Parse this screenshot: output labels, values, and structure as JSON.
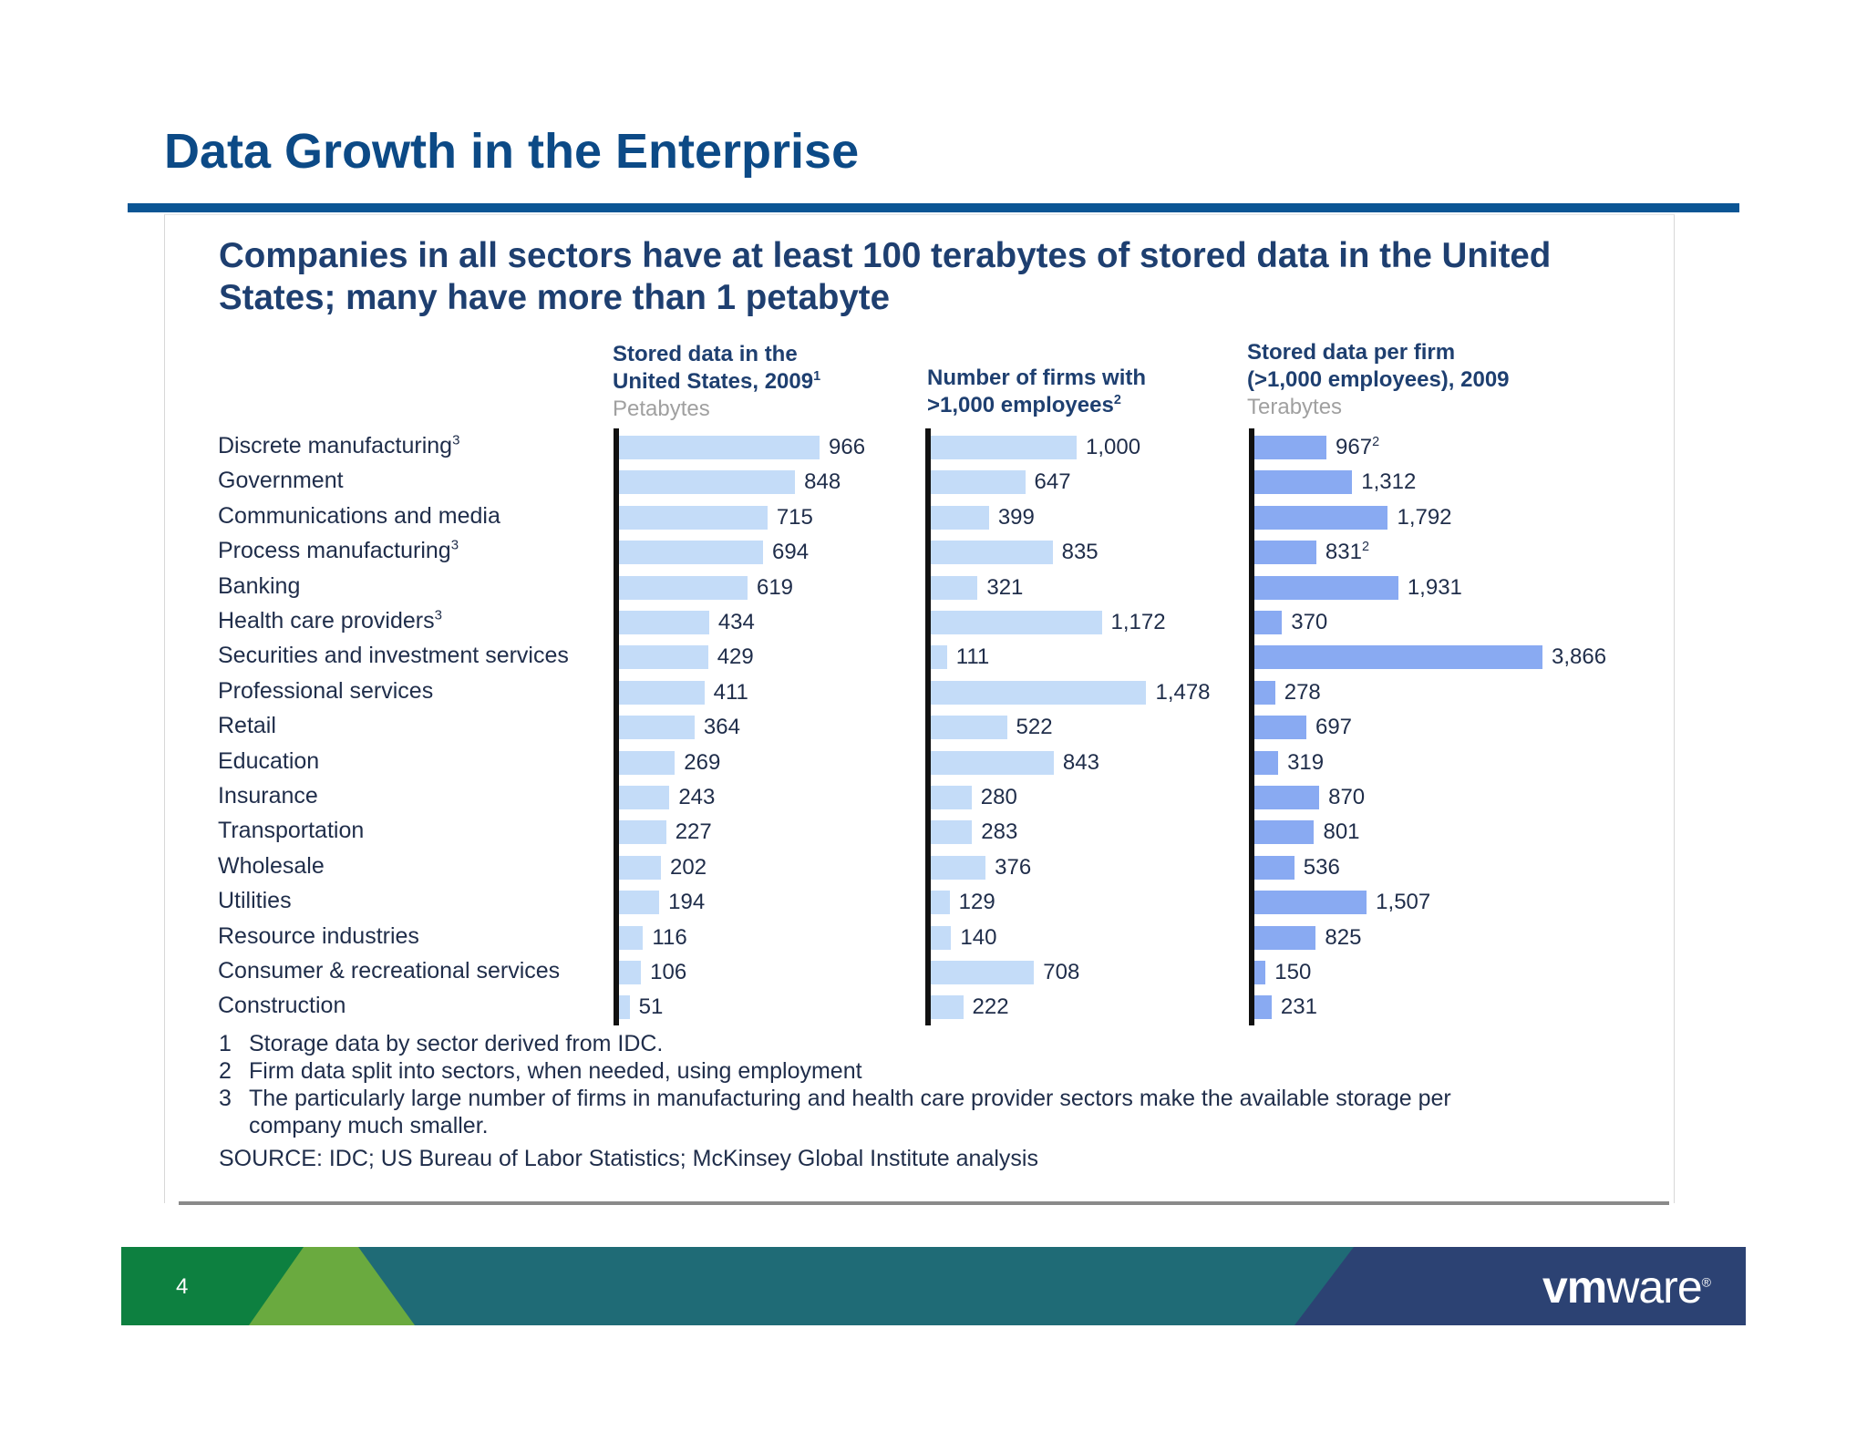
{
  "slide": {
    "title": "Data Growth in the Enterprise",
    "page_number": "4",
    "logo_text_bold": "vm",
    "logo_text_regular": "ware",
    "logo_registered": "®"
  },
  "panel": {
    "headline": "Companies in all sectors have at least 100 terabytes of stored data in the United States; many have more than 1 petabyte"
  },
  "columns": [
    {
      "line1": "Stored data in the",
      "line2": "United States, 2009",
      "sup": "1",
      "line3": "",
      "unit": "Petabytes"
    },
    {
      "line1": "",
      "line2": "Number of firms with",
      "sup": "",
      "line3": ">1,000 employees",
      "sup3": "2",
      "unit": ""
    },
    {
      "line1": "Stored data per firm",
      "line2": "(>1,000 employees), 2009",
      "sup": "",
      "line3": "",
      "unit": "Terabytes"
    }
  ],
  "footnotes": [
    {
      "num": "1",
      "text": "Storage data by sector derived from IDC."
    },
    {
      "num": "2",
      "text": "Firm data split into sectors, when needed, using employment"
    },
    {
      "num": "3",
      "text": "The particularly large number of firms in manufacturing and health care provider sectors make the available storage per"
    }
  ],
  "footnote_3_continued": "company much smaller.",
  "source": "SOURCE: IDC; US Bureau of Labor Statistics; McKinsey Global Institute analysis",
  "colors": {
    "title_blue": "#0c4a86",
    "bar_light": "#c4dcf8",
    "bar_medium": "#89aaf2",
    "footer_green": "#0d8040",
    "footer_light_green": "#6aaa3f",
    "footer_teal": "#1f6b76",
    "footer_navy": "#2c4273"
  },
  "chart_data": {
    "type": "bar",
    "orientation": "horizontal",
    "categories": [
      {
        "label": "Discrete manufacturing",
        "sup": "3"
      },
      {
        "label": "Government",
        "sup": ""
      },
      {
        "label": "Communications and media",
        "sup": ""
      },
      {
        "label": "Process manufacturing",
        "sup": "3"
      },
      {
        "label": "Banking",
        "sup": ""
      },
      {
        "label": "Health care providers",
        "sup": "3"
      },
      {
        "label": "Securities and investment services",
        "sup": ""
      },
      {
        "label": "Professional services",
        "sup": ""
      },
      {
        "label": "Retail",
        "sup": ""
      },
      {
        "label": "Education",
        "sup": ""
      },
      {
        "label": "Insurance",
        "sup": ""
      },
      {
        "label": "Transportation",
        "sup": ""
      },
      {
        "label": "Wholesale",
        "sup": ""
      },
      {
        "label": "Utilities",
        "sup": ""
      },
      {
        "label": "Resource industries",
        "sup": ""
      },
      {
        "label": "Consumer & recreational services",
        "sup": ""
      },
      {
        "label": "Construction",
        "sup": ""
      }
    ],
    "series": [
      {
        "values": [
          966,
          848,
          715,
          694,
          619,
          434,
          429,
          411,
          364,
          269,
          243,
          227,
          202,
          194,
          116,
          106,
          51
        ],
        "labels": [
          "966",
          "848",
          "715",
          "694",
          "619",
          "434",
          "429",
          "411",
          "364",
          "269",
          "243",
          "227",
          "202",
          "194",
          "116",
          "106",
          "51"
        ],
        "label_sups": [
          "",
          "",
          "",
          "",
          "",
          "",
          "",
          "",
          "",
          "",
          "",
          "",
          "",
          "",
          "",
          "",
          ""
        ]
      },
      {
        "values": [
          1000,
          647,
          399,
          835,
          321,
          1172,
          111,
          1478,
          522,
          843,
          280,
          283,
          376,
          129,
          140,
          708,
          222
        ],
        "labels": [
          "1,000",
          "647",
          "399",
          "835",
          "321",
          "1,172",
          "111",
          "1,478",
          "522",
          "843",
          "280",
          "283",
          "376",
          "129",
          "140",
          "708",
          "222"
        ],
        "label_sups": [
          "",
          "",
          "",
          "",
          "",
          "",
          "",
          "",
          "",
          "",
          "",
          "",
          "",
          "",
          "",
          "",
          ""
        ]
      },
      {
        "values": [
          967,
          1312,
          1792,
          831,
          1931,
          370,
          3866,
          278,
          697,
          319,
          870,
          801,
          536,
          1507,
          825,
          150,
          231
        ],
        "labels": [
          "967",
          "1,312",
          "1,792",
          "831",
          "1,931",
          "370",
          "3,866",
          "278",
          "697",
          "319",
          "870",
          "801",
          "536",
          "1,507",
          "825",
          "150",
          "231"
        ],
        "label_sups": [
          "2",
          "",
          "",
          "2",
          "",
          "",
          "",
          "",
          "",
          "",
          "",
          "",
          "",
          "",
          "",
          "",
          ""
        ]
      }
    ]
  }
}
